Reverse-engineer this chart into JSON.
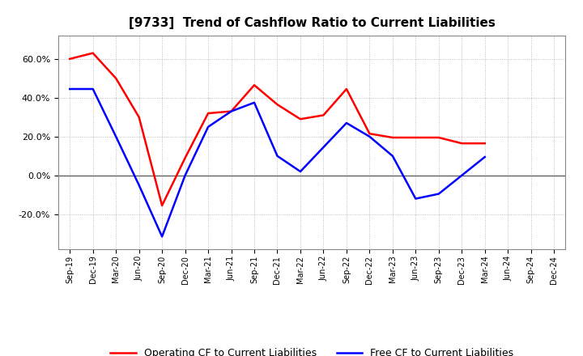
{
  "title": "[9733]  Trend of Cashflow Ratio to Current Liabilities",
  "x_labels": [
    "Sep-19",
    "Dec-19",
    "Mar-20",
    "Jun-20",
    "Sep-20",
    "Dec-20",
    "Mar-21",
    "Jun-21",
    "Sep-21",
    "Dec-21",
    "Mar-22",
    "Jun-22",
    "Sep-22",
    "Dec-22",
    "Mar-23",
    "Jun-23",
    "Sep-23",
    "Dec-23",
    "Mar-24",
    "Jun-24",
    "Sep-24",
    "Dec-24"
  ],
  "operating_cf": [
    0.6,
    0.63,
    0.5,
    0.3,
    -0.155,
    0.09,
    0.32,
    0.33,
    0.465,
    0.365,
    0.29,
    0.31,
    0.445,
    0.215,
    0.195,
    0.195,
    0.195,
    0.165,
    0.165,
    null,
    null,
    null
  ],
  "free_cf": [
    0.445,
    0.445,
    0.2,
    -0.05,
    -0.315,
    0.0,
    0.25,
    0.33,
    0.375,
    0.1,
    0.02,
    0.145,
    0.27,
    0.2,
    0.1,
    -0.12,
    -0.095,
    0.0,
    0.095,
    null,
    null,
    null
  ],
  "ylim": [
    -0.38,
    0.72
  ],
  "yticks": [
    -0.2,
    0.0,
    0.2,
    0.4,
    0.6
  ],
  "operating_color": "#FF0000",
  "free_color": "#0000FF",
  "legend_operating": "Operating CF to Current Liabilities",
  "legend_free": "Free CF to Current Liabilities",
  "background_color": "#FFFFFF",
  "plot_bg_color": "#FFFFFF"
}
